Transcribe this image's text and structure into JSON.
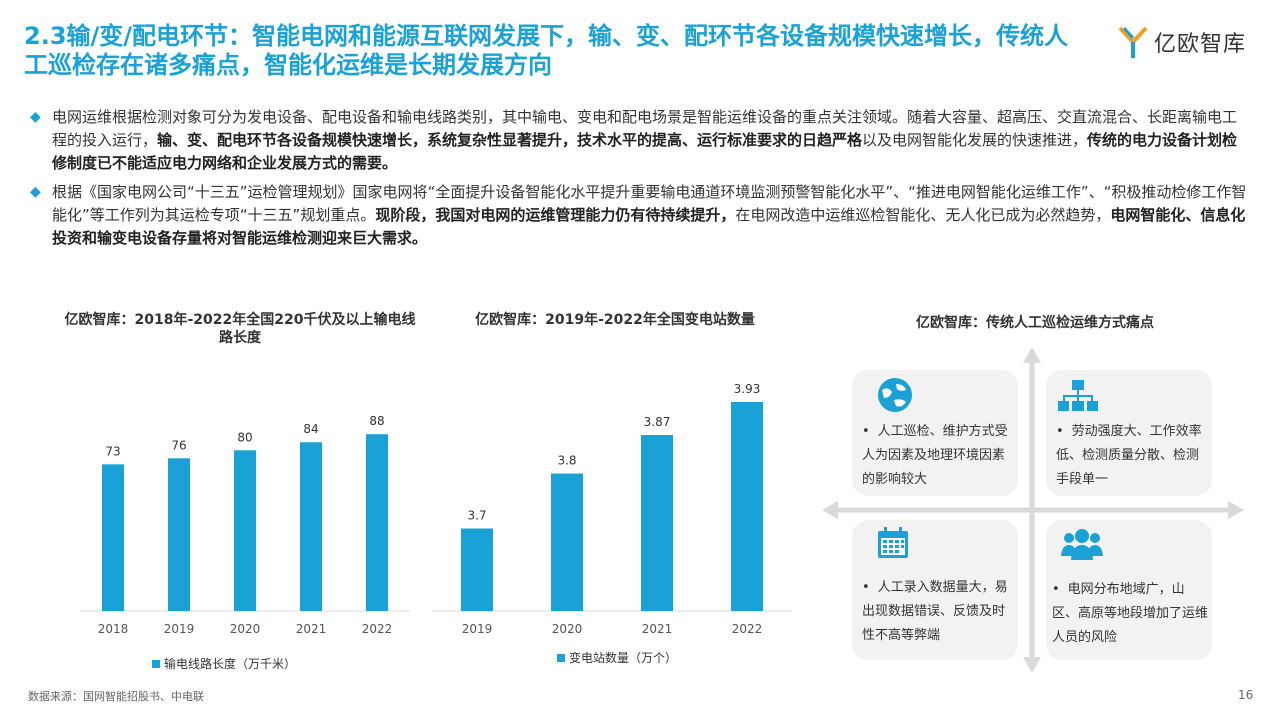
{
  "header": {
    "title": "2.3输/变/配电环节：智能电网和能源互联网发展下，输、变、配环节各设备规模快速增长，传统人工巡检存在诸多痛点，智能化运维是长期发展方向",
    "logo_text": "亿欧智库"
  },
  "bullets": [
    {
      "segments": [
        {
          "text": "电网运维根据检测对象可分为发电设备、配电设备和输电线路类别，其中输电、变电和配电场景是智能运维设备的重点关注领域。随着大容量、超高压、交直流混合、长距离输电工程的投入运行，",
          "bold": false
        },
        {
          "text": "输、变、配电环节各设备规模快速增长，系统复杂性显著提升，技术水平的提高、运行标准要求的日趋严格",
          "bold": true
        },
        {
          "text": "以及电网智能化发展的快速推进，",
          "bold": false
        },
        {
          "text": "传统的电力设备计划检修制度已不能适应电力网络和企业发展方式的需要。",
          "bold": true
        }
      ]
    },
    {
      "segments": [
        {
          "text": "根据《国家电网公司“十三五”运检管理规划》国家电网将“全面提升设备智能化水平提升重要输电通道环境监测预警智能化水平”、“推进电网智能化运维工作”、“积极推动检修工作智能化”等工作列为其运检专项“十三五”规划重点。",
          "bold": false
        },
        {
          "text": "现阶段，我国对电网的运维管理能力仍有待持续提升，",
          "bold": true
        },
        {
          "text": "在电网改造中运维巡检智能化、无人化已成为必然趋势，",
          "bold": false
        },
        {
          "text": "电网智能化、信息化投资和输变电设备存量将对智能运维检测迎来巨大需求。",
          "bold": true
        }
      ]
    }
  ],
  "chart_data": [
    {
      "type": "bar",
      "title": "亿欧智库：2018年-2022年全国220千伏及以上输电线路长度",
      "categories": [
        "2018",
        "2019",
        "2020",
        "2021",
        "2022"
      ],
      "series": [
        {
          "name": "输电线路长度（万千米）",
          "values": [
            73,
            76,
            80,
            84,
            88
          ]
        }
      ],
      "ylim": [
        0,
        110
      ],
      "color": "#1aa2d6"
    },
    {
      "type": "bar",
      "title": "亿欧智库：2019年-2022年全国变电站数量",
      "categories": [
        "2019",
        "2020",
        "2021",
        "2022"
      ],
      "series": [
        {
          "name": "变电站数量（万个）",
          "values": [
            3.7,
            3.8,
            3.87,
            3.93
          ]
        }
      ],
      "ylim": [
        3.55,
        3.97
      ],
      "color": "#1aa2d6"
    }
  ],
  "pain_points": {
    "title": "亿欧智库：传统人工巡检运维方式痛点",
    "items": [
      {
        "icon": "globe-icon",
        "text": "人工巡检、维护方式受人为因素及地理环境因素的影响较大"
      },
      {
        "icon": "org-chart-icon",
        "text": "劳动强度大、工作效率低、检测质量分散、检测手段单一"
      },
      {
        "icon": "calendar-icon",
        "text": "人工录入数据量大，易出现数据错误、反馈及时性不高等弊端"
      },
      {
        "icon": "people-icon",
        "text": "电网分布地域广，山区、高原等地段增加了运维人员的风险"
      }
    ],
    "bullet": "•"
  },
  "footer": {
    "source": "数据来源：国网智能招股书、中电联",
    "page_number": "16"
  },
  "colors": {
    "accent": "#1aa2d6",
    "axis": "#d9d9d9",
    "card_bg": "#f2f2f2"
  }
}
